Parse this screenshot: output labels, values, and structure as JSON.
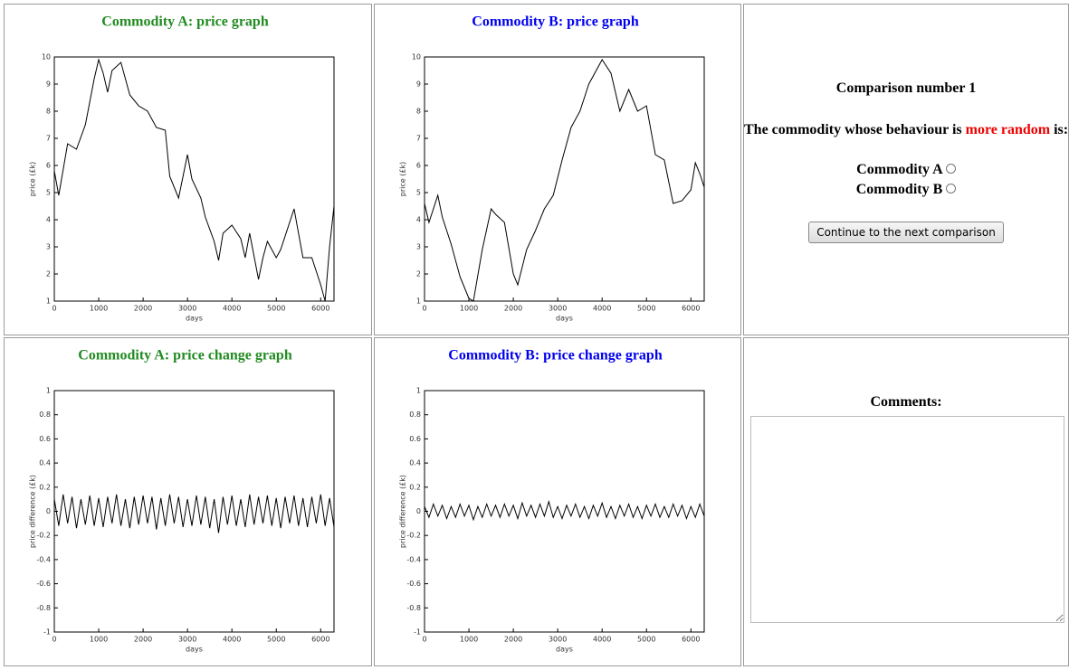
{
  "chart_data": [
    {
      "type": "line",
      "title": "Commodity A: price graph",
      "title_color": "#228b22",
      "x_label": "days",
      "y_label": "price (£k)",
      "color": "#000000",
      "xlim": [
        0,
        6300
      ],
      "xticks": [
        0,
        1000,
        2000,
        3000,
        4000,
        5000,
        6000
      ],
      "ylim": [
        1,
        10
      ],
      "yticks": [
        1,
        2,
        3,
        4,
        5,
        6,
        7,
        8,
        9,
        10
      ],
      "x": [
        0,
        100,
        300,
        500,
        700,
        900,
        1000,
        1100,
        1200,
        1300,
        1500,
        1700,
        1900,
        2100,
        2300,
        2500,
        2600,
        2800,
        2900,
        3000,
        3100,
        3300,
        3400,
        3600,
        3700,
        3800,
        4000,
        4200,
        4300,
        4400,
        4600,
        4700,
        4800,
        5000,
        5100,
        5400,
        5600,
        5800,
        6000,
        6100,
        6200,
        6300
      ],
      "values": [
        5.8,
        4.9,
        6.8,
        6.6,
        7.5,
        9.2,
        9.9,
        9.4,
        8.7,
        9.5,
        9.8,
        8.6,
        8.2,
        8.0,
        7.4,
        7.3,
        5.6,
        4.8,
        5.6,
        6.4,
        5.5,
        4.8,
        4.1,
        3.2,
        2.5,
        3.5,
        3.8,
        3.3,
        2.6,
        3.5,
        1.8,
        2.6,
        3.2,
        2.6,
        2.9,
        4.4,
        2.6,
        2.6,
        1.6,
        1.0,
        3.0,
        4.5
      ]
    },
    {
      "type": "line",
      "title": "Commodity B: price graph",
      "title_color": "#0000ee",
      "x_label": "days",
      "y_label": "price (£k)",
      "color": "#000000",
      "xlim": [
        0,
        6300
      ],
      "xticks": [
        0,
        1000,
        2000,
        3000,
        4000,
        5000,
        6000
      ],
      "ylim": [
        1,
        10
      ],
      "yticks": [
        1,
        2,
        3,
        4,
        5,
        6,
        7,
        8,
        9,
        10
      ],
      "x": [
        0,
        100,
        300,
        400,
        600,
        800,
        1000,
        1100,
        1300,
        1500,
        1600,
        1800,
        2000,
        2100,
        2300,
        2500,
        2700,
        2900,
        3100,
        3300,
        3500,
        3700,
        3900,
        4000,
        4200,
        4400,
        4600,
        4800,
        5000,
        5200,
        5400,
        5600,
        5800,
        6000,
        6100,
        6200,
        6300
      ],
      "values": [
        4.6,
        3.9,
        4.9,
        4.1,
        3.1,
        1.9,
        1.1,
        1.0,
        2.9,
        4.4,
        4.2,
        3.9,
        2.0,
        1.6,
        2.9,
        3.6,
        4.4,
        4.9,
        6.2,
        7.4,
        8.0,
        9.0,
        9.6,
        9.9,
        9.4,
        8.0,
        8.8,
        8.0,
        8.2,
        6.4,
        6.2,
        4.6,
        4.7,
        5.1,
        6.1,
        5.7,
        5.2
      ]
    },
    {
      "type": "line",
      "title": "Commodity A: price change graph",
      "title_color": "#228b22",
      "x_label": "days",
      "y_label": "price difference (£k)",
      "color": "#000000",
      "xlim": [
        0,
        6300
      ],
      "xticks": [
        0,
        1000,
        2000,
        3000,
        4000,
        5000,
        6000
      ],
      "ylim": [
        -1,
        1
      ],
      "yticks": [
        -1,
        -0.8,
        -0.6,
        -0.4,
        -0.2,
        0,
        0.2,
        0.4,
        0.6,
        0.8,
        1
      ],
      "x": [
        0,
        100,
        200,
        300,
        400,
        500,
        600,
        700,
        800,
        900,
        1000,
        1100,
        1200,
        1300,
        1400,
        1500,
        1600,
        1700,
        1800,
        1900,
        2000,
        2100,
        2200,
        2300,
        2400,
        2500,
        2600,
        2700,
        2800,
        2900,
        3000,
        3100,
        3200,
        3300,
        3400,
        3500,
        3600,
        3700,
        3800,
        3900,
        4000,
        4100,
        4200,
        4300,
        4400,
        4500,
        4600,
        4700,
        4800,
        4900,
        5000,
        5100,
        5200,
        5300,
        5400,
        5500,
        5600,
        5700,
        5800,
        5900,
        6000,
        6100,
        6200,
        6300
      ],
      "values": [
        0.1,
        -0.12,
        0.14,
        -0.1,
        0.12,
        -0.14,
        0.1,
        -0.11,
        0.13,
        -0.12,
        0.11,
        -0.13,
        0.12,
        -0.1,
        0.14,
        -0.12,
        0.1,
        -0.14,
        0.12,
        -0.11,
        0.13,
        -0.1,
        0.12,
        -0.15,
        0.11,
        -0.12,
        0.14,
        -0.1,
        0.12,
        -0.13,
        0.1,
        -0.12,
        0.13,
        -0.11,
        0.12,
        -0.14,
        0.1,
        -0.18,
        0.12,
        -0.11,
        0.13,
        -0.12,
        0.1,
        -0.13,
        0.14,
        -0.11,
        0.12,
        -0.1,
        0.13,
        -0.12,
        0.11,
        -0.14,
        0.12,
        -0.1,
        0.13,
        -0.12,
        0.11,
        -0.13,
        0.12,
        -0.1,
        0.14,
        -0.12,
        0.11,
        -0.13
      ]
    },
    {
      "type": "line",
      "title": "Commodity B: price change graph",
      "title_color": "#0000ee",
      "x_label": "days",
      "y_label": "price difference (£k)",
      "color": "#000000",
      "xlim": [
        0,
        6300
      ],
      "xticks": [
        0,
        1000,
        2000,
        3000,
        4000,
        5000,
        6000
      ],
      "ylim": [
        -1,
        1
      ],
      "yticks": [
        -1,
        -0.8,
        -0.6,
        -0.4,
        -0.2,
        0,
        0.2,
        0.4,
        0.6,
        0.8,
        1
      ],
      "x": [
        0,
        100,
        200,
        300,
        400,
        500,
        600,
        700,
        800,
        900,
        1000,
        1100,
        1200,
        1300,
        1400,
        1500,
        1600,
        1700,
        1800,
        1900,
        2000,
        2100,
        2200,
        2300,
        2400,
        2500,
        2600,
        2700,
        2800,
        2900,
        3000,
        3100,
        3200,
        3300,
        3400,
        3500,
        3600,
        3700,
        3800,
        3900,
        4000,
        4100,
        4200,
        4300,
        4400,
        4500,
        4600,
        4700,
        4800,
        4900,
        5000,
        5100,
        5200,
        5300,
        5400,
        5500,
        5600,
        5700,
        5800,
        5900,
        6000,
        6100,
        6200,
        6300
      ],
      "values": [
        0.04,
        -0.05,
        0.06,
        -0.04,
        0.05,
        -0.06,
        0.04,
        -0.05,
        0.06,
        -0.04,
        0.05,
        -0.07,
        0.04,
        -0.05,
        0.06,
        -0.04,
        0.05,
        -0.05,
        0.06,
        -0.04,
        0.05,
        -0.06,
        0.07,
        -0.04,
        0.05,
        -0.05,
        0.06,
        -0.04,
        0.08,
        -0.05,
        0.04,
        -0.06,
        0.05,
        -0.04,
        0.06,
        -0.05,
        0.04,
        -0.06,
        0.05,
        -0.04,
        0.07,
        -0.05,
        0.04,
        -0.06,
        0.05,
        -0.04,
        0.06,
        -0.05,
        0.04,
        -0.06,
        0.05,
        -0.04,
        0.06,
        -0.05,
        0.04,
        -0.05,
        0.06,
        -0.04,
        0.05,
        -0.06,
        0.04,
        -0.05,
        0.06,
        -0.04
      ]
    }
  ],
  "form": {
    "heading": "Comparison number 1",
    "question_before": "The commodity whose behaviour is ",
    "question_emphasis": "more random",
    "question_after": " is:",
    "options": [
      "Commodity A",
      "Commodity B"
    ],
    "button": "Continue to the next comparison",
    "comments_label": "Comments:"
  }
}
